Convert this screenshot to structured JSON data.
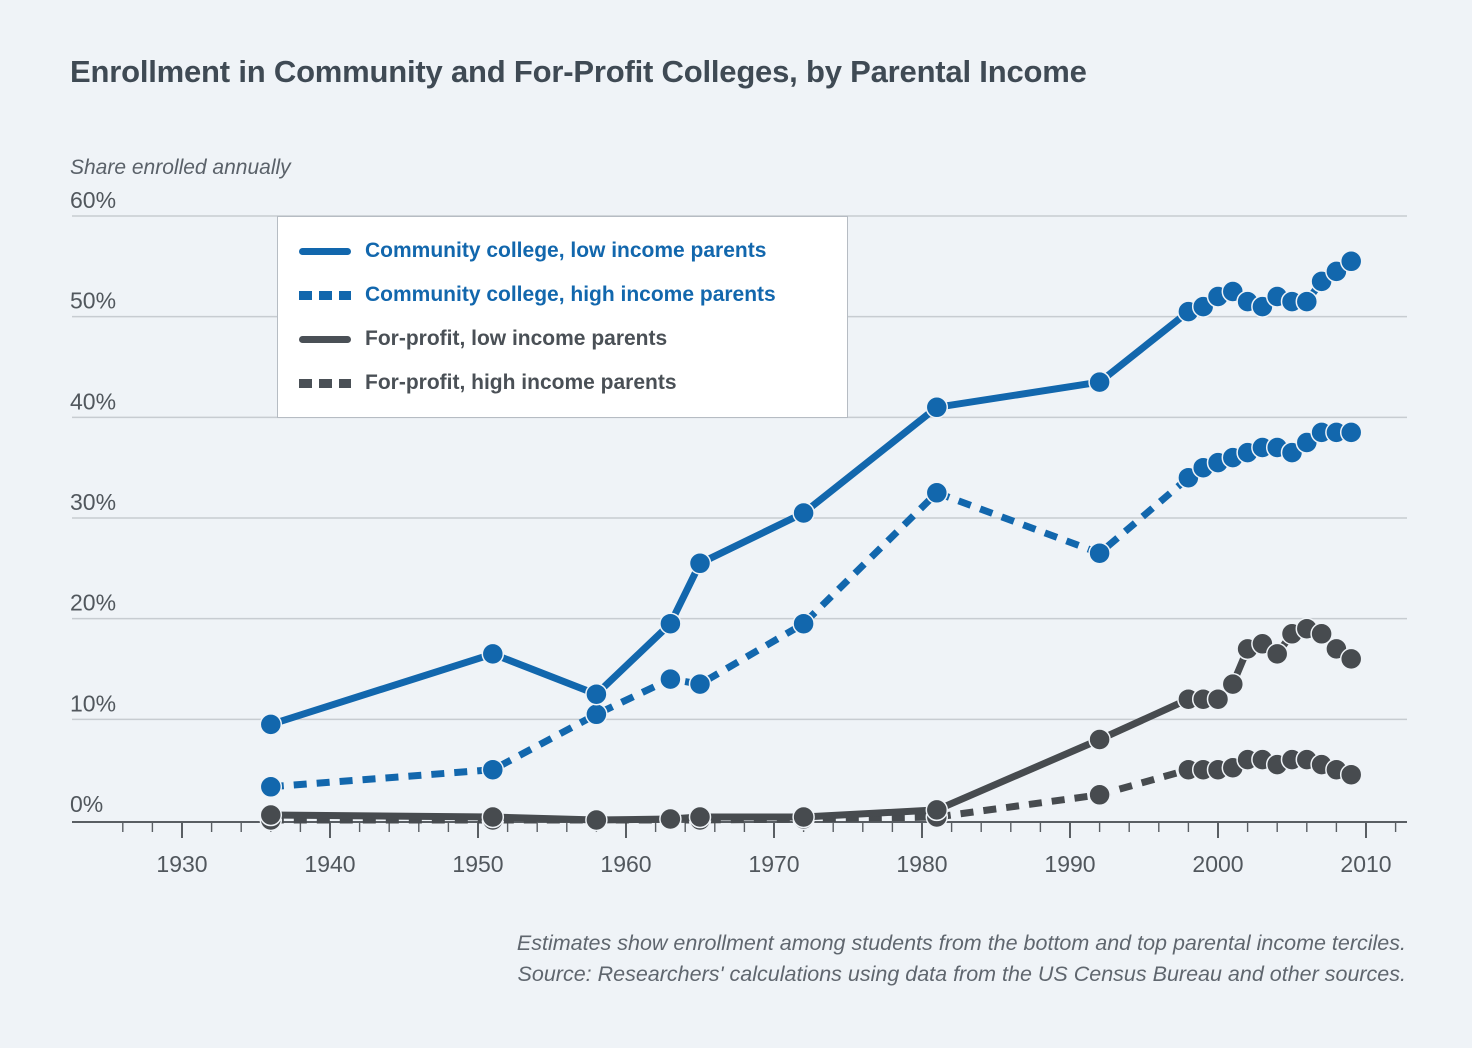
{
  "title": "Enrollment in Community and For-Profit Colleges, by Parental Income",
  "y_axis_title": "Share enrolled annually",
  "caption": {
    "line1": "Estimates show enrollment among students from the bottom and top parental income terciles.",
    "line2": "Source: Researchers' calculations using data from the US Census Bureau and other sources."
  },
  "colors": {
    "blue": "#1267ad",
    "gray": "#474b4f",
    "background": "#eff3f7",
    "gridline": "#c7ccd1",
    "axis": "#595e63",
    "tick_text": "#51575d",
    "title_text": "#3f4a54",
    "caption_text": "#5f666e",
    "legend_border": "#b6bcc3",
    "legend_background": "#ffffff"
  },
  "legend": {
    "items": [
      {
        "label": "Community college, low income parents",
        "color_key": "blue",
        "line_style": "solid"
      },
      {
        "label": "Community college, high income parents",
        "color_key": "blue",
        "line_style": "dashed"
      },
      {
        "label": "For-profit, low income parents",
        "color_key": "gray",
        "line_style": "solid"
      },
      {
        "label": "For-profit, high income parents",
        "color_key": "gray",
        "line_style": "dashed"
      }
    ]
  },
  "chart_data": {
    "type": "line",
    "title": "Enrollment in Community and For-Profit Colleges, by Parental Income",
    "xlabel": "",
    "ylabel": "Share enrolled annually",
    "grid": true,
    "legend_position": "top-left-inside",
    "xlim": [
      1924,
      2012.5
    ],
    "ylim": [
      0,
      60
    ],
    "x": [
      1936,
      1951,
      1958,
      1963,
      1965,
      1972,
      1981,
      1992,
      1998,
      1999,
      2000,
      2001,
      2002,
      2003,
      2004,
      2005,
      2006,
      2007,
      2008,
      2009
    ],
    "series": [
      {
        "name": "Community college, low income parents",
        "id": "cc-low",
        "color_key": "blue",
        "line_style": "solid",
        "values": [
          9.5,
          16.5,
          12.5,
          19.5,
          25.5,
          30.5,
          41,
          43.5,
          50.5,
          51,
          52,
          52.5,
          51.5,
          51,
          52,
          51.5,
          51.5,
          53.5,
          54.5,
          55.5
        ]
      },
      {
        "name": "Community college, high income parents",
        "id": "cc-high",
        "color_key": "blue",
        "line_style": "dashed",
        "values": [
          3.3,
          5,
          10.5,
          14,
          13.5,
          19.5,
          32.5,
          26.5,
          34,
          35,
          35.5,
          36,
          36.5,
          37,
          37,
          36.5,
          37.5,
          38.5,
          38.5,
          38.5
        ]
      },
      {
        "name": "For-profit, low income parents",
        "id": "fp-low",
        "color_key": "gray",
        "line_style": "solid",
        "values": [
          0.5,
          0.3,
          0,
          0.1,
          0.3,
          0.3,
          1,
          8,
          12,
          12,
          12,
          13.5,
          17,
          17.5,
          16.5,
          18.5,
          19,
          18.5,
          17,
          16
        ]
      },
      {
        "name": "For-profit, high income parents",
        "id": "fp-high",
        "color_key": "gray",
        "line_style": "dashed",
        "values": [
          0,
          0,
          0,
          0,
          0,
          0.1,
          0.3,
          2.5,
          5,
          5,
          5,
          5.2,
          6,
          6,
          5.5,
          6,
          6,
          5.5,
          5,
          4.5
        ]
      }
    ],
    "y_ticks": [
      {
        "value": 0,
        "label": "0%"
      },
      {
        "value": 10,
        "label": "10%"
      },
      {
        "value": 20,
        "label": "20%"
      },
      {
        "value": 30,
        "label": "30%"
      },
      {
        "value": 40,
        "label": "40%"
      },
      {
        "value": 50,
        "label": "50%"
      },
      {
        "value": 60,
        "label": "60%"
      }
    ],
    "x_ticks": [
      1930,
      1940,
      1950,
      1960,
      1970,
      1980,
      1990,
      2000,
      2010
    ],
    "minor_tick_step_years": 2,
    "minor_tick_range": [
      1926,
      2012
    ]
  }
}
